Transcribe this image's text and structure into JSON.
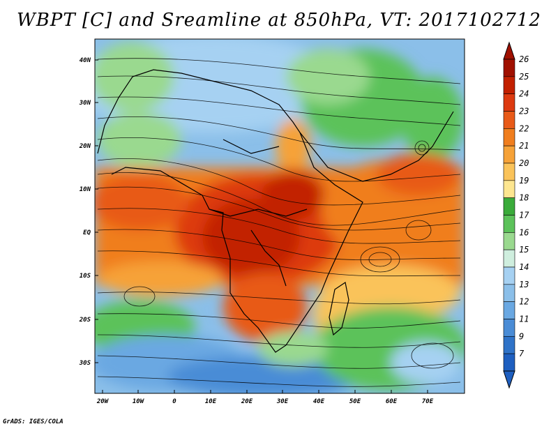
{
  "title": "WBPT [C] and Sreamline at 850hPa, VT: 2017102712",
  "credit": "GrADS: IGES/COLA",
  "map": {
    "lat_labels": [
      "40N",
      "30N",
      "20N",
      "10N",
      "EQ",
      "10S",
      "20S",
      "30S"
    ],
    "lon_labels": [
      "20W",
      "10W",
      "0",
      "10E",
      "20E",
      "30E",
      "40E",
      "50E",
      "60E",
      "70E"
    ]
  },
  "colorbar": {
    "labels": [
      "26",
      "25",
      "24",
      "23",
      "22",
      "21",
      "20",
      "19",
      "18",
      "17",
      "16",
      "15",
      "14",
      "13",
      "12",
      "11",
      "9",
      "7"
    ],
    "colors": [
      "#a01000",
      "#c22000",
      "#dd3a10",
      "#e85a18",
      "#f07e1e",
      "#f6a238",
      "#fac35a",
      "#fde690",
      "#3aab3a",
      "#5cc25a",
      "#9ad98f",
      "#cfeede",
      "#a6d1f2",
      "#8bbfe9",
      "#6aa8e2",
      "#4a8cd6",
      "#2f73c8",
      "#1e5fc0"
    ]
  }
}
